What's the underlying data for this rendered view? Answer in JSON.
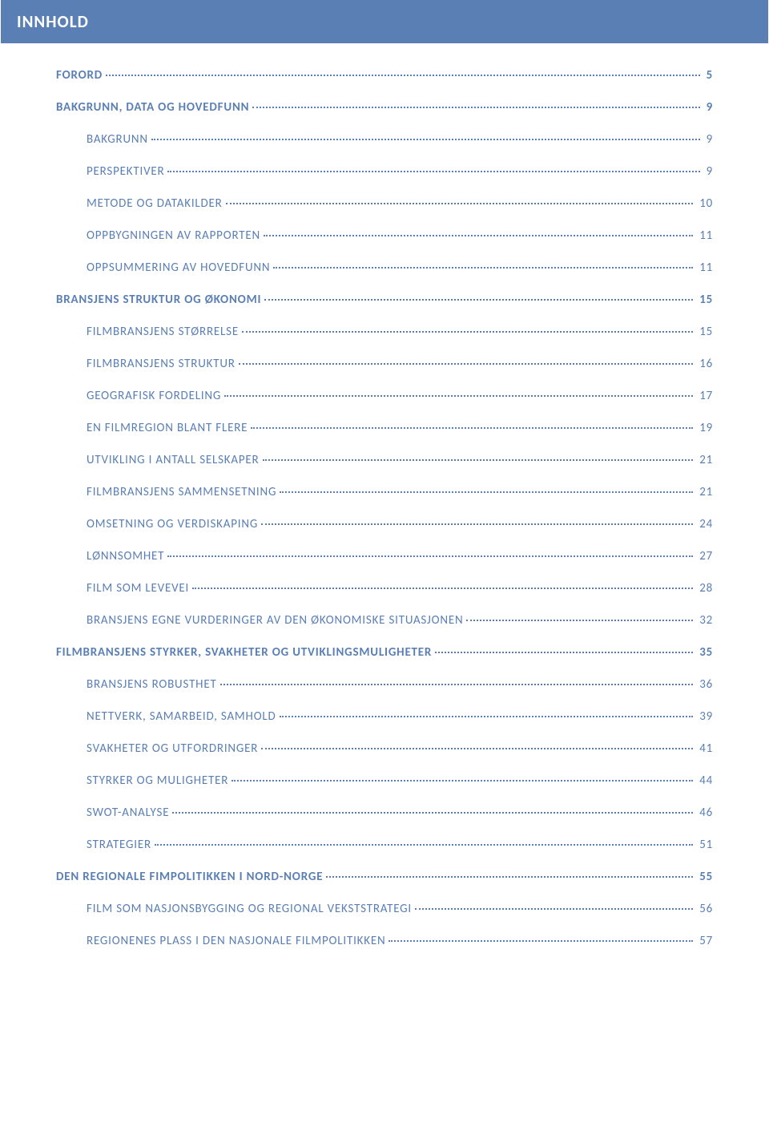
{
  "colors": {
    "header_bg": "#5a7fb5",
    "header_fg": "#ffffff",
    "text_fg": "#5a7fb5",
    "dot_color": "#5a7fb5",
    "page_bg": "#ffffff"
  },
  "typography": {
    "header_fontsize": 21,
    "entry_fontsize": 15,
    "letter_spacing": 0.8,
    "font_family": "Calibri"
  },
  "header": {
    "title": "INNHOLD"
  },
  "toc": [
    {
      "level": 0,
      "label": "FORORD",
      "page": "5"
    },
    {
      "level": 0,
      "label": "BAKGRUNN, DATA OG HOVEDFUNN",
      "page": "9"
    },
    {
      "level": 1,
      "label": "BAKGRUNN",
      "page": "9"
    },
    {
      "level": 1,
      "label": "PERSPEKTIVER",
      "page": "9"
    },
    {
      "level": 1,
      "label": "METODE OG DATAKILDER",
      "page": "10"
    },
    {
      "level": 1,
      "label": "OPPBYGNINGEN AV RAPPORTEN",
      "page": "11"
    },
    {
      "level": 1,
      "label": "OPPSUMMERING AV HOVEDFUNN",
      "page": "11"
    },
    {
      "level": 0,
      "label": "BRANSJENS STRUKTUR OG ØKONOMI",
      "page": "15"
    },
    {
      "level": 1,
      "label": "FILMBRANSJENS STØRRELSE",
      "page": "15"
    },
    {
      "level": 1,
      "label": "FILMBRANSJENS STRUKTUR",
      "page": "16"
    },
    {
      "level": 1,
      "label": "GEOGRAFISK FORDELING",
      "page": "17"
    },
    {
      "level": 1,
      "label": "EN FILMREGION BLANT FLERE",
      "page": "19"
    },
    {
      "level": 1,
      "label": "UTVIKLING I ANTALL SELSKAPER",
      "page": "21"
    },
    {
      "level": 1,
      "label": "FILMBRANSJENS SAMMENSETNING",
      "page": "21"
    },
    {
      "level": 1,
      "label": "OMSETNING OG VERDISKAPING",
      "page": "24"
    },
    {
      "level": 1,
      "label": "LØNNSOMHET",
      "page": "27"
    },
    {
      "level": 1,
      "label": "FILM SOM LEVEVEI",
      "page": "28"
    },
    {
      "level": 1,
      "label": "BRANSJENS EGNE VURDERINGER AV DEN ØKONOMISKE SITUASJONEN",
      "page": "32"
    },
    {
      "level": 0,
      "label": "FILMBRANSJENS STYRKER, SVAKHETER OG UTVIKLINGSMULIGHETER",
      "page": "35"
    },
    {
      "level": 1,
      "label": "BRANSJENS ROBUSTHET",
      "page": "36"
    },
    {
      "level": 1,
      "label": "NETTVERK, SAMARBEID, SAMHOLD",
      "page": "39"
    },
    {
      "level": 1,
      "label": "SVAKHETER OG UTFORDRINGER",
      "page": "41"
    },
    {
      "level": 1,
      "label": "STYRKER OG MULIGHETER",
      "page": "44"
    },
    {
      "level": 1,
      "label": "SWOT-ANALYSE",
      "page": "46"
    },
    {
      "level": 1,
      "label": "STRATEGIER",
      "page": "51"
    },
    {
      "level": 0,
      "label": "DEN REGIONALE FIMPOLITIKKEN I NORD-NORGE",
      "page": "55"
    },
    {
      "level": 1,
      "label": "FILM SOM NASJONSBYGGING OG REGIONAL VEKSTSTRATEGI",
      "page": "56"
    },
    {
      "level": 1,
      "label": "REGIONENES PLASS I DEN NASJONALE FILMPOLITIKKEN",
      "page": "57"
    }
  ]
}
